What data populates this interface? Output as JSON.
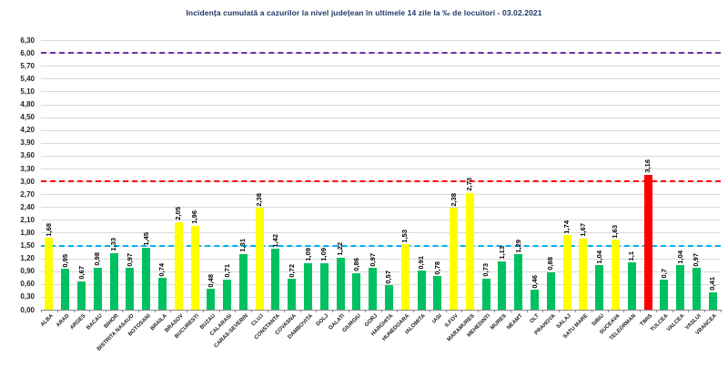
{
  "title": "Incidența cumulată a cazurilor la nivel județean în ultimele 14 zile la ‰ de locuitori - 03.02.2021",
  "chart_data": {
    "type": "bar",
    "title": "Incidența cumulată a cazurilor la nivel județean în ultimele 14 zile la ‰ de locuitori - 03.02.2021",
    "categories": [
      "ALBA",
      "ARAD",
      "ARGES",
      "BACAU",
      "BIHOR",
      "BISTRITA NASAUD",
      "BOTOSANI",
      "BRAILA",
      "BRASOV",
      "BUCURESTI",
      "BUZAU",
      "CALARASI",
      "CARAS-SEVERIN",
      "CLUJ",
      "CONSTANTA",
      "COVASNA",
      "DAMBOVITA",
      "DOLJ",
      "GALATI",
      "GIURGIU",
      "GORJ",
      "HARGHITA",
      "HUNEDOARA",
      "IALOMITA",
      "IASI",
      "ILFOV",
      "MARAMURES",
      "MEHEDINTI",
      "MURES",
      "NEAMT",
      "OLT",
      "PRAHOVA",
      "SALAJ",
      "SATU MARE",
      "SIBIU",
      "SUCEAVA",
      "TELEORMAN",
      "TIMIS",
      "TULCEA",
      "VALCEA",
      "VASLUI",
      "VRANCEA"
    ],
    "values": [
      1.68,
      0.95,
      0.67,
      0.98,
      1.33,
      0.97,
      1.45,
      0.74,
      2.05,
      1.96,
      0.48,
      0.71,
      1.31,
      2.38,
      1.42,
      0.72,
      1.09,
      1.09,
      1.22,
      0.86,
      0.97,
      0.57,
      1.53,
      0.91,
      0.78,
      2.38,
      2.73,
      0.73,
      1.13,
      1.29,
      0.46,
      0.88,
      1.74,
      1.67,
      1.04,
      1.63,
      1.1,
      3.16,
      0.7,
      1.04,
      0.97,
      0.41
    ],
    "value_labels": [
      "1,68",
      "0,95",
      "0,67",
      "0,98",
      "1,33",
      "0,97",
      "1,45",
      "0,74",
      "2,05",
      "1,96",
      "0,48",
      "0,71",
      "1,31",
      "2,38",
      "1,42",
      "0,72",
      "1,09",
      "1,09",
      "1,22",
      "0,86",
      "0,97",
      "0,57",
      "1,53",
      "0,91",
      "0,78",
      "2,38",
      "2,73",
      "0,73",
      "1,13",
      "1,29",
      "0,46",
      "0,88",
      "1,74",
      "1,67",
      "1,04",
      "1,63",
      "1,1",
      "3,16",
      "0,7",
      "1,04",
      "0,97",
      "0,41"
    ],
    "xlabel": "",
    "ylabel": "",
    "ylim": [
      0,
      6.3
    ],
    "ytick_step": 0.3,
    "ytick_format": "comma-decimal",
    "grid": true,
    "legend": "none",
    "thresholds": [
      {
        "value": 1.5,
        "color": "#00B0F0",
        "style": "dashed"
      },
      {
        "value": 3.0,
        "color": "#FF0000",
        "style": "dashed"
      },
      {
        "value": 6.0,
        "color": "#7030A0",
        "style": "dashed"
      }
    ],
    "bar_color_rules": {
      "yellow_from": 1.5,
      "red_from": 3.0
    },
    "colors": {
      "green": "#00C060",
      "yellow": "#FFFF00",
      "red": "#FF0000",
      "title": "#1F3864",
      "gridline": "#D9D9D9"
    }
  }
}
